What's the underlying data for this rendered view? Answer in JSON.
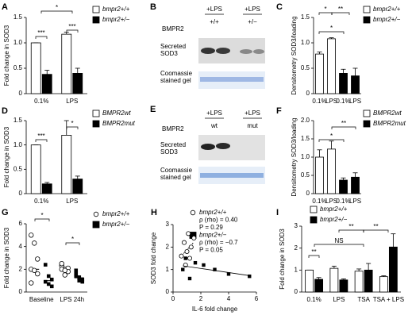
{
  "chart_data": [
    {
      "panel": "A",
      "type": "bar",
      "ylabel": "Fold change in SOD3",
      "categories": [
        "0.1%",
        "LPS"
      ],
      "series": [
        {
          "name": "bmpr2+/+",
          "color": "#ffffff",
          "values": [
            1.0,
            1.17
          ],
          "errors": [
            0,
            0.04
          ]
        },
        {
          "name": "bmpr2+/−",
          "color": "#000000",
          "values": [
            0.38,
            0.4
          ],
          "errors": [
            0.08,
            0.1
          ]
        }
      ],
      "ylim": [
        0,
        1.5
      ],
      "yticks": [
        0,
        0.5,
        {
          "value": 1,
          "label": "1.0"
        },
        1.5
      ],
      "annotations": [
        "*",
        "***",
        "***"
      ]
    },
    {
      "panel": "C",
      "type": "bar",
      "ylabel": "Densitometry SOD3/loading",
      "categories": [
        "0.1%",
        "LPS",
        "0.1%",
        "LPS"
      ],
      "series": [
        {
          "name": "bmpr2+/+",
          "color": "#ffffff",
          "values": [
            0.78,
            1.08,
            null,
            null
          ],
          "errors": [
            0.04,
            0.02,
            null,
            null
          ]
        },
        {
          "name": "bmpr2+/−",
          "color": "#000000",
          "values": [
            null,
            null,
            0.4,
            0.35
          ],
          "errors": [
            null,
            null,
            0.08,
            0.15
          ]
        }
      ],
      "ylim": [
        0,
        1.5
      ],
      "yticks": [
        0,
        0.5,
        {
          "value": 1,
          "label": "1.0"
        },
        1.5
      ],
      "annotations": [
        "*",
        "**",
        "*"
      ]
    },
    {
      "panel": "D",
      "type": "bar",
      "ylabel": "Fold change in SOD3",
      "categories": [
        "0.1%",
        "LPS"
      ],
      "series": [
        {
          "name": "BMPR2wt",
          "color": "#ffffff",
          "values": [
            1.0,
            1.2
          ],
          "errors": [
            0,
            0.3
          ]
        },
        {
          "name": "BMPR2mut",
          "color": "#000000",
          "values": [
            0.2,
            0.3
          ],
          "errors": [
            0.03,
            0.06
          ]
        }
      ],
      "ylim": [
        0,
        1.5
      ],
      "yticks": [
        0,
        0.5,
        {
          "value": 1,
          "label": "1.0"
        },
        1.5
      ],
      "annotations": [
        "***",
        "*"
      ]
    },
    {
      "panel": "F",
      "type": "bar",
      "ylabel": "Densitometry SOD3/loading",
      "categories": [
        "0.1%",
        "LPS",
        "0.1%",
        "LPS"
      ],
      "series": [
        {
          "name": "BMPR2wt",
          "color": "#ffffff",
          "values": [
            1.0,
            1.22,
            null,
            null
          ],
          "errors": [
            0.2,
            0.22,
            null,
            null
          ]
        },
        {
          "name": "BMPR2mut",
          "color": "#000000",
          "values": [
            null,
            null,
            0.37,
            0.45
          ],
          "errors": [
            null,
            null,
            0.06,
            0.12
          ]
        }
      ],
      "ylim": [
        0,
        2
      ],
      "yticks": [
        0,
        0.5,
        {
          "value": 1,
          "label": "1.0"
        },
        1.5,
        {
          "value": 2,
          "label": "2.0"
        }
      ],
      "annotations": [
        "*",
        "**"
      ]
    },
    {
      "panel": "G",
      "type": "strip",
      "ylabel": "Fold change in SOD3",
      "categories": [
        "Baseline",
        "LPS 24h"
      ],
      "series": [
        {
          "name": "bmpr2+/+",
          "color": "#ffffff",
          "marker": "circle",
          "values": [
            [
              5.0,
              4.3,
              2.9,
              2.0,
              1.9,
              1.6,
              0.8
            ],
            [
              2.3,
              2.0,
              2.1,
              2.5,
              1.5,
              1.8,
              2.0,
              1.9
            ]
          ]
        },
        {
          "name": "bmpr2+/−",
          "color": "#000000",
          "marker": "square",
          "values": [
            [
              2.4,
              1.4,
              1.1,
              0.9,
              0.7,
              0.5
            ],
            [
              1.6,
              1.3,
              1.1,
              1.9,
              1.2,
              0.9,
              1.4,
              1.0
            ]
          ]
        }
      ],
      "ylim": [
        0,
        6
      ],
      "yticks": [
        0,
        2,
        4,
        6
      ],
      "annotations": [
        "*",
        "*"
      ]
    },
    {
      "panel": "H",
      "type": "scatter",
      "ylabel": "SOD3 fold change",
      "xlabel": "IL-6 fold change",
      "series": [
        {
          "name": "bmpr2+/+",
          "color": "#ffffff",
          "marker": "circle",
          "x": [
            0.6,
            0.8,
            1.0,
            1.1,
            1.3,
            1.5,
            0.9,
            1.2
          ],
          "y": [
            1.6,
            2.2,
            1.8,
            2.6,
            2.0,
            2.4,
            1.2,
            1.5
          ],
          "legend_text": [
            "ρ (rho) = 0.40",
            "P = 0.29"
          ]
        },
        {
          "name": "bmpr2+/−",
          "color": "#000000",
          "marker": "square",
          "x": [
            0.7,
            0.9,
            1.2,
            1.6,
            2.2,
            3.0,
            4.0,
            5.5
          ],
          "y": [
            1.0,
            1.5,
            0.6,
            1.3,
            1.2,
            1.0,
            0.8,
            0.7
          ],
          "legend_text": [
            "ρ (rho) = −0.7",
            "P = 0.05"
          ]
        }
      ],
      "xlim": [
        0,
        6
      ],
      "xticks": [
        0,
        2,
        4,
        6
      ],
      "ylim": [
        0,
        3
      ],
      "yticks": [
        0,
        1,
        2,
        3
      ]
    },
    {
      "panel": "I",
      "type": "bar",
      "ylabel": "Fold change in SOD3",
      "categories": [
        "0.1%",
        "LPS",
        "TSA",
        "TSA + LPS"
      ],
      "series": [
        {
          "name": "bmpr2+/+",
          "color": "#ffffff",
          "values": [
            1.0,
            1.08,
            0.95,
            0.7
          ],
          "errors": [
            0,
            0.1,
            0.1,
            0.04
          ]
        },
        {
          "name": "bmpr2+/−",
          "color": "#000000",
          "values": [
            0.58,
            0.55,
            1.0,
            2.05
          ],
          "errors": [
            0.08,
            0.05,
            0.3,
            0.6
          ]
        }
      ],
      "ylim": [
        0,
        3
      ],
      "yticks": [
        0,
        1,
        2,
        3
      ],
      "annotations": [
        "**",
        "**",
        "NS",
        "**"
      ]
    }
  ],
  "blots": [
    {
      "panel": "B",
      "treatment_labels": [
        "+LPS",
        "+LPS"
      ],
      "row_label": "BMPR2",
      "genotypes": [
        "+/+",
        "+/−"
      ],
      "band_label": "Secreted SOD3",
      "gel_label": "Coomassie stained gel"
    },
    {
      "panel": "E",
      "treatment_labels": [
        "+LPS",
        "+LPS"
      ],
      "row_label": "BMPR2",
      "genotypes": [
        "wt",
        "mut"
      ],
      "band_label": "Secreted SOD3",
      "gel_label": "Coomassie stained gel"
    }
  ]
}
